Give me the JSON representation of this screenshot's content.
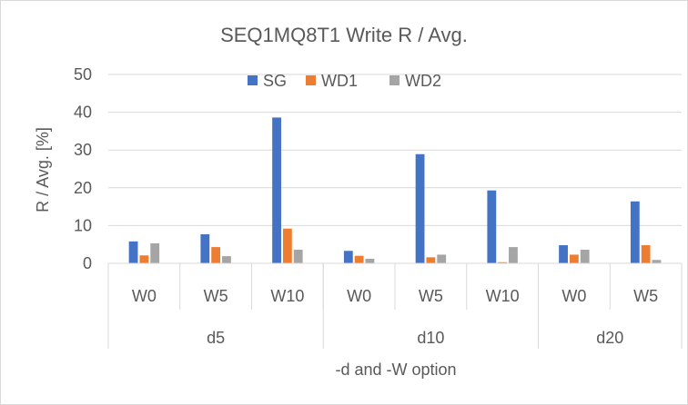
{
  "chart_data": {
    "type": "bar",
    "title": "SEQ1MQ8T1 Write R / Avg.",
    "xlabel": "-d and -W option",
    "ylabel": "R / Avg. [%]",
    "ylim": [
      0,
      50
    ],
    "yticks": [
      "0",
      "10",
      "20",
      "30",
      "40",
      "50"
    ],
    "grid": true,
    "legend_position": "top",
    "groups": [
      {
        "label": "d5",
        "categories": [
          "W0",
          "W5",
          "W10"
        ]
      },
      {
        "label": "d10",
        "categories": [
          "W0",
          "W5",
          "W10"
        ]
      },
      {
        "label": "d20",
        "categories": [
          "W0",
          "W5"
        ]
      }
    ],
    "series": [
      {
        "name": "SG",
        "color": "#4472C4",
        "values": [
          5.8,
          7.7,
          38.6,
          3.3,
          28.9,
          19.3,
          4.8,
          16.4
        ]
      },
      {
        "name": "WD1",
        "color": "#ED7D31",
        "values": [
          2.1,
          4.3,
          9.2,
          2.0,
          1.6,
          0.3,
          2.3,
          4.8
        ]
      },
      {
        "name": "WD2",
        "color": "#A5A5A5",
        "values": [
          5.3,
          1.9,
          3.6,
          1.2,
          2.3,
          4.3,
          3.6,
          0.9
        ]
      }
    ]
  }
}
